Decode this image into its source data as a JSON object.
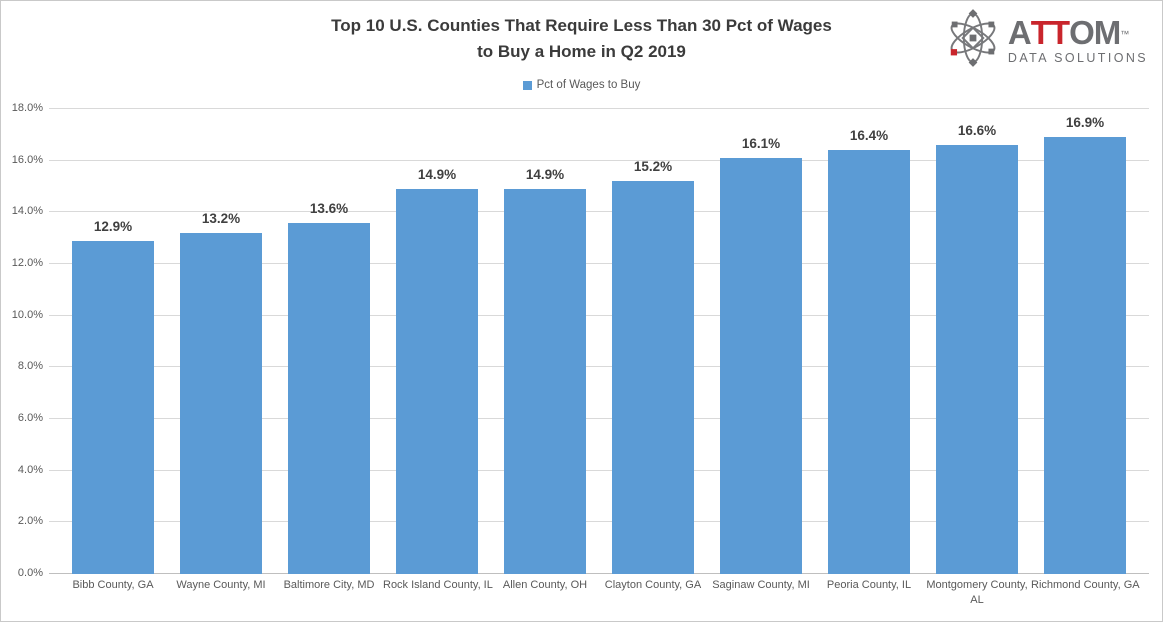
{
  "title": {
    "lines": [
      "Top 10 U.S. Counties That Require Less Than 30 Pct of Wages",
      "to Buy a Home in Q2 2019"
    ]
  },
  "legend": {
    "label": "Pct of Wages to Buy"
  },
  "brand": {
    "part1": "A",
    "part2": "TT",
    "part3": "OM",
    "tm": "™",
    "subtitle": "DATA SOLUTIONS"
  },
  "colors": {
    "bar": "#5B9BD5",
    "gridline": "#D9D9D9",
    "axis_text": "#595959",
    "data_label": "#404040",
    "title_text": "#3B3B3B",
    "brand_gray": "#6D6E71",
    "brand_red": "#C9252C"
  },
  "chart_data": {
    "type": "bar",
    "title": "Top 10 U.S. Counties That Require Less Than 30 Pct of Wages to Buy a Home in Q2 2019",
    "legend_entries": [
      "Pct of Wages to Buy"
    ],
    "legend_position": "top",
    "grid": true,
    "categories": [
      "Bibb County, GA",
      "Wayne County, MI",
      "Baltimore City, MD",
      "Rock Island County, IL",
      "Allen County, OH",
      "Clayton County, GA",
      "Saginaw County, MI",
      "Peoria County, IL",
      "Montgomery County, AL",
      "Richmond County, GA"
    ],
    "category_display_lines": [
      [
        "Bibb County, GA"
      ],
      [
        "Wayne County, MI"
      ],
      [
        "Baltimore City, MD"
      ],
      [
        "Rock Island County, IL"
      ],
      [
        "Allen County, OH"
      ],
      [
        "Clayton County, GA"
      ],
      [
        "Saginaw County, MI"
      ],
      [
        "Peoria County, IL"
      ],
      [
        "Montgomery County,",
        "AL"
      ],
      [
        "Richmond County, GA"
      ]
    ],
    "values": [
      12.9,
      13.2,
      13.6,
      14.9,
      14.9,
      15.2,
      16.1,
      16.4,
      16.6,
      16.9
    ],
    "value_labels": [
      "12.9%",
      "13.2%",
      "13.6%",
      "14.9%",
      "14.9%",
      "15.2%",
      "16.1%",
      "16.4%",
      "16.6%",
      "16.9%"
    ],
    "xlabel": "",
    "ylabel": "",
    "ylim": [
      0,
      18
    ],
    "ytick_step": 2,
    "ytick_labels": [
      "0.0%",
      "2.0%",
      "4.0%",
      "6.0%",
      "8.0%",
      "10.0%",
      "12.0%",
      "14.0%",
      "16.0%",
      "18.0%"
    ]
  }
}
